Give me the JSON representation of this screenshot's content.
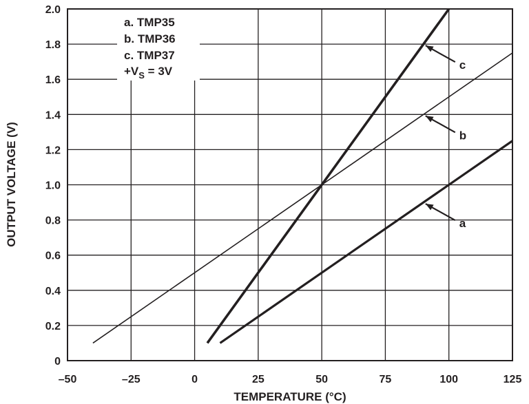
{
  "chart_data": {
    "type": "line",
    "xlabel": "TEMPERATURE (°C)",
    "ylabel": "OUTPUT VOLTAGE (V)",
    "xlim": [
      -50,
      125
    ],
    "ylim": [
      0,
      2.0
    ],
    "x_ticks": [
      -50,
      -25,
      0,
      25,
      50,
      75,
      100,
      125
    ],
    "x_tick_labels": [
      "–50",
      "–25",
      "0",
      "25",
      "50",
      "75",
      "100",
      "125"
    ],
    "y_ticks": [
      0,
      0.2,
      0.4,
      0.6,
      0.8,
      1.0,
      1.2,
      1.4,
      1.6,
      1.8,
      2.0
    ],
    "y_tick_labels": [
      "0",
      "0.2",
      "0.4",
      "0.6",
      "0.8",
      "1.0",
      "1.2",
      "1.4",
      "1.6",
      "1.8",
      "2.0"
    ],
    "grid": true,
    "legend": {
      "placement": "top-left",
      "entries": [
        "a.  TMP35",
        "b.  TMP36",
        "c.  TMP37"
      ],
      "supply": {
        "prefix": "+V",
        "subscript": "S",
        "suffix": " = 3V"
      }
    },
    "series": [
      {
        "name": "a",
        "x": [
          10,
          125
        ],
        "y": [
          0.1,
          1.25
        ]
      },
      {
        "name": "b",
        "x": [
          -40,
          125
        ],
        "y": [
          0.1,
          1.75
        ]
      },
      {
        "name": "c",
        "x": [
          5,
          100
        ],
        "y": [
          0.1,
          2.0
        ]
      }
    ],
    "callouts": [
      {
        "label": "a",
        "series": "a",
        "at_x": 90
      },
      {
        "label": "b",
        "series": "b",
        "at_x": 90
      },
      {
        "label": "c",
        "series": "c",
        "at_x": 90
      }
    ]
  }
}
